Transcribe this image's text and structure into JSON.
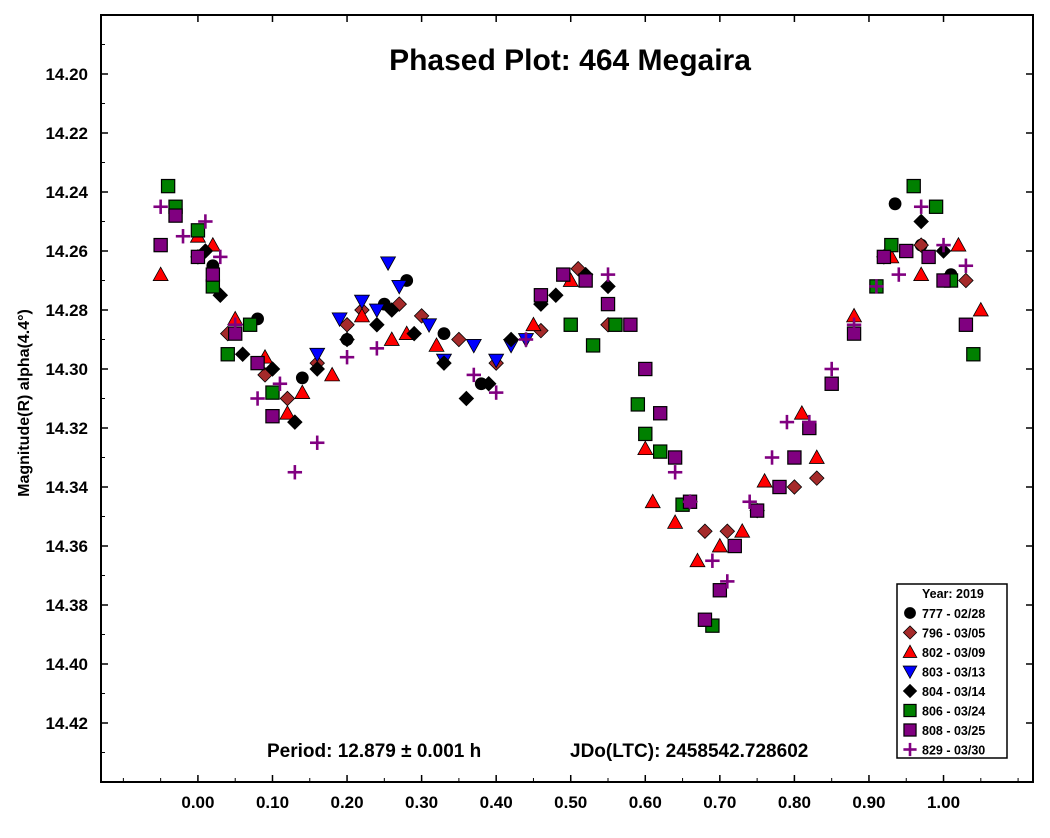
{
  "chart_data": {
    "type": "scatter",
    "title": "Phased Plot: 464 Megaira",
    "xlabel": "",
    "ylabel": "Magnitude(R) alpha(4.4°)",
    "xlim": [
      -0.13,
      1.12
    ],
    "ylim": [
      14.18,
      14.44
    ],
    "y_inverted": true,
    "x_ticks": [
      0.0,
      0.1,
      0.2,
      0.3,
      0.4,
      0.5,
      0.6,
      0.7,
      0.8,
      0.9,
      1.0
    ],
    "x_tick_labels": [
      "0.00",
      "0.10",
      "0.20",
      "0.30",
      "0.40",
      "0.50",
      "0.60",
      "0.70",
      "0.80",
      "0.90",
      "1.00"
    ],
    "y_ticks": [
      14.2,
      14.22,
      14.24,
      14.26,
      14.28,
      14.3,
      14.32,
      14.34,
      14.36,
      14.38,
      14.4,
      14.42
    ],
    "y_tick_labels": [
      "14.20",
      "14.22",
      "14.24",
      "14.26",
      "14.28",
      "14.30",
      "14.32",
      "14.34",
      "14.36",
      "14.38",
      "14.40",
      "14.42"
    ],
    "grid": false,
    "legend": {
      "title": "Year: 2019",
      "placement": "bottom-right"
    },
    "footer": {
      "period": "Period: 12.879 ± 0.001 h",
      "epoch": "JDo(LTC): 2458542.728602"
    },
    "series": [
      {
        "name": "777 - 02/28",
        "marker": "circle",
        "color": "#000000",
        "x": [
          0.02,
          0.08,
          0.14,
          0.2,
          0.25,
          0.28,
          0.33,
          0.38,
          0.935,
          0.97,
          1.01
        ],
        "y": [
          14.265,
          14.283,
          14.303,
          14.29,
          14.278,
          14.27,
          14.288,
          14.305,
          14.244,
          14.258,
          14.268
        ]
      },
      {
        "name": "796 - 03/05",
        "marker": "diamond",
        "color": "#a52a2a",
        "x": [
          0.0,
          0.04,
          0.09,
          0.12,
          0.16,
          0.2,
          0.22,
          0.27,
          0.3,
          0.35,
          0.4,
          0.46,
          0.51,
          0.55,
          0.66,
          0.68,
          0.71,
          0.75,
          0.8,
          0.83,
          0.92,
          0.97,
          1.03
        ],
        "y": [
          14.262,
          14.288,
          14.302,
          14.31,
          14.298,
          14.285,
          14.28,
          14.278,
          14.282,
          14.29,
          14.298,
          14.287,
          14.266,
          14.285,
          14.345,
          14.355,
          14.355,
          14.348,
          14.34,
          14.337,
          14.262,
          14.258,
          14.27
        ]
      },
      {
        "name": "802 - 03/09",
        "marker": "triangle-up",
        "color": "#ff0000",
        "x": [
          -0.05,
          0.0,
          0.02,
          0.05,
          0.09,
          0.12,
          0.14,
          0.18,
          0.22,
          0.26,
          0.28,
          0.32,
          0.45,
          0.5,
          0.6,
          0.61,
          0.64,
          0.67,
          0.7,
          0.73,
          0.76,
          0.81,
          0.83,
          0.88,
          0.93,
          0.97,
          1.02,
          1.05
        ],
        "y": [
          14.268,
          14.255,
          14.258,
          14.283,
          14.296,
          14.315,
          14.308,
          14.302,
          14.282,
          14.29,
          14.288,
          14.292,
          14.285,
          14.27,
          14.327,
          14.345,
          14.352,
          14.365,
          14.36,
          14.355,
          14.338,
          14.315,
          14.33,
          14.282,
          14.262,
          14.268,
          14.258,
          14.28
        ]
      },
      {
        "name": "803 - 03/13",
        "marker": "triangle-down",
        "color": "#0000ff",
        "x": [
          0.16,
          0.19,
          0.22,
          0.24,
          0.255,
          0.27,
          0.31,
          0.33,
          0.37,
          0.4,
          0.42,
          0.44
        ],
        "y": [
          14.295,
          14.283,
          14.277,
          14.28,
          14.264,
          14.272,
          14.285,
          14.297,
          14.292,
          14.297,
          14.292,
          14.29
        ]
      },
      {
        "name": "804 - 03/14",
        "marker": "diamond",
        "color": "#000000",
        "x": [
          0.01,
          0.03,
          0.06,
          0.1,
          0.13,
          0.16,
          0.2,
          0.24,
          0.26,
          0.29,
          0.33,
          0.36,
          0.39,
          0.42,
          0.46,
          0.48,
          0.52,
          0.55,
          0.97,
          1.0
        ],
        "y": [
          14.26,
          14.275,
          14.295,
          14.3,
          14.318,
          14.3,
          14.29,
          14.285,
          14.28,
          14.288,
          14.298,
          14.31,
          14.305,
          14.29,
          14.278,
          14.275,
          14.268,
          14.272,
          14.25,
          14.26
        ]
      },
      {
        "name": "806 - 03/24",
        "marker": "square",
        "color": "#008000",
        "x": [
          -0.04,
          -0.03,
          0.0,
          0.02,
          0.04,
          0.07,
          0.1,
          0.5,
          0.53,
          0.56,
          0.59,
          0.6,
          0.62,
          0.65,
          0.69,
          0.91,
          0.93,
          0.96,
          0.99,
          1.01,
          1.04
        ],
        "y": [
          14.238,
          14.245,
          14.253,
          14.272,
          14.295,
          14.285,
          14.308,
          14.285,
          14.292,
          14.285,
          14.312,
          14.322,
          14.328,
          14.346,
          14.387,
          14.272,
          14.258,
          14.238,
          14.245,
          14.27,
          14.295
        ]
      },
      {
        "name": "808 - 03/25",
        "marker": "square",
        "color": "#800080",
        "x": [
          -0.05,
          -0.03,
          0.0,
          0.02,
          0.05,
          0.08,
          0.1,
          0.46,
          0.49,
          0.52,
          0.55,
          0.58,
          0.6,
          0.62,
          0.64,
          0.66,
          0.68,
          0.7,
          0.72,
          0.75,
          0.78,
          0.8,
          0.82,
          0.85,
          0.88,
          0.92,
          0.95,
          0.98,
          1.0,
          1.03
        ],
        "y": [
          14.258,
          14.248,
          14.262,
          14.268,
          14.288,
          14.298,
          14.316,
          14.275,
          14.268,
          14.27,
          14.278,
          14.285,
          14.3,
          14.315,
          14.33,
          14.345,
          14.385,
          14.375,
          14.36,
          14.348,
          14.34,
          14.33,
          14.32,
          14.305,
          14.288,
          14.262,
          14.26,
          14.262,
          14.27,
          14.285
        ]
      },
      {
        "name": "829 - 03/30",
        "marker": "plus",
        "color": "#800080",
        "x": [
          -0.05,
          -0.02,
          0.01,
          0.03,
          0.05,
          0.08,
          0.11,
          0.13,
          0.16,
          0.2,
          0.24,
          0.37,
          0.4,
          0.44,
          0.55,
          0.64,
          0.66,
          0.69,
          0.71,
          0.74,
          0.77,
          0.79,
          0.82,
          0.85,
          0.88,
          0.91,
          0.94,
          0.97,
          1.0,
          1.03
        ],
        "y": [
          14.245,
          14.255,
          14.25,
          14.262,
          14.285,
          14.31,
          14.305,
          14.335,
          14.325,
          14.296,
          14.293,
          14.302,
          14.308,
          14.29,
          14.268,
          14.335,
          14.345,
          14.365,
          14.372,
          14.345,
          14.33,
          14.318,
          14.318,
          14.3,
          14.285,
          14.272,
          14.268,
          14.245,
          14.258,
          14.265
        ]
      }
    ]
  }
}
